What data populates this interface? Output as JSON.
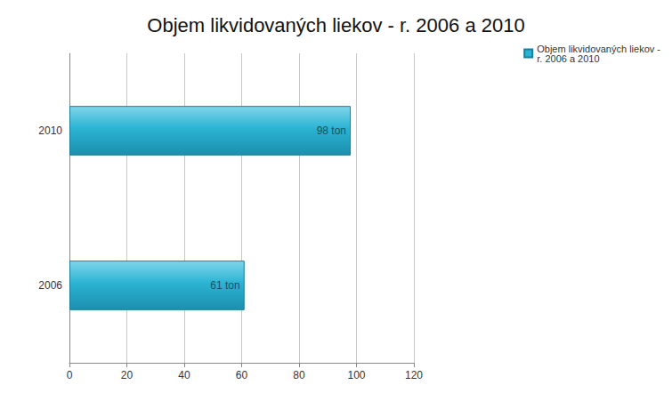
{
  "chart_data": {
    "type": "bar",
    "orientation": "horizontal",
    "title": "Objem likvidovaných liekov - r. 2006 a 2010",
    "categories": [
      "2006",
      "2010"
    ],
    "series": [
      {
        "name": "Objem likvidovaných liekov - r. 2006 a 2010",
        "color": "#2bb3d3",
        "values": [
          61,
          98
        ],
        "value_labels": [
          "61 ton",
          "98 ton"
        ]
      }
    ],
    "xlim": [
      0,
      120
    ],
    "xticks": [
      0,
      20,
      40,
      60,
      80,
      100,
      120
    ],
    "grid": true,
    "legend": "right",
    "data_labels": true
  }
}
